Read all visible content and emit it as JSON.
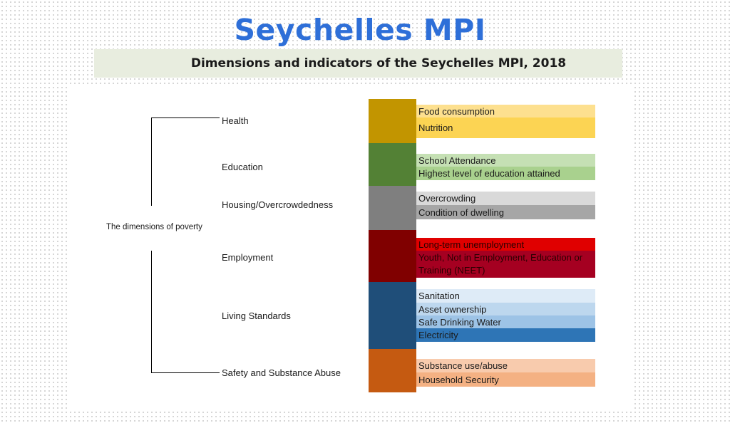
{
  "header": {
    "title": "Seychelles MPI",
    "subtitle": "Dimensions and indicators of the  Seychelles MPI, 2018"
  },
  "diagram": {
    "root_label": "The  dimensions of poverty",
    "dimensions": [
      {
        "label": "Health",
        "color": "#c29500",
        "indicators": [
          {
            "label": "Food consumption",
            "color": "#fde08f"
          },
          {
            "label": "Nutrition",
            "color": "#fcd453"
          }
        ]
      },
      {
        "label": "Education",
        "color": "#538135",
        "indicators": [
          {
            "label": "School Attendance",
            "color": "#c5e0b4"
          },
          {
            "label": "Highest level of education attained",
            "color": "#a9d18e"
          }
        ]
      },
      {
        "label": "Housing/Overcrowdedness",
        "color": "#7f7f7f",
        "indicators": [
          {
            "label": "Overcrowding",
            "color": "#d9d9d9"
          },
          {
            "label": "Condition of dwelling",
            "color": "#a6a6a6"
          }
        ]
      },
      {
        "label": "Employment",
        "color": "#800000",
        "indicators": [
          {
            "label": "Long-term unemployment",
            "color": "#e00000"
          },
          {
            "label": "Youth, Not in Employment, Education or Training (NEET)",
            "color": "#a50021"
          }
        ]
      },
      {
        "label": "Living Standards",
        "color": "#1f4e79",
        "indicators": [
          {
            "label": "Sanitation",
            "color": "#deebf7"
          },
          {
            "label": "Asset ownership",
            "color": "#bdd7ee"
          },
          {
            "label": "Safe Drinking Water",
            "color": "#9dc3e6"
          },
          {
            "label": "Electricity",
            "color": "#2e75b6"
          }
        ]
      },
      {
        "label": "Safety and Substance Abuse",
        "color": "#c55a11",
        "indicators": [
          {
            "label": "Substance use/abuse",
            "color": "#f8cbad"
          },
          {
            "label": "Household Security",
            "color": "#f4b183"
          }
        ]
      }
    ]
  }
}
